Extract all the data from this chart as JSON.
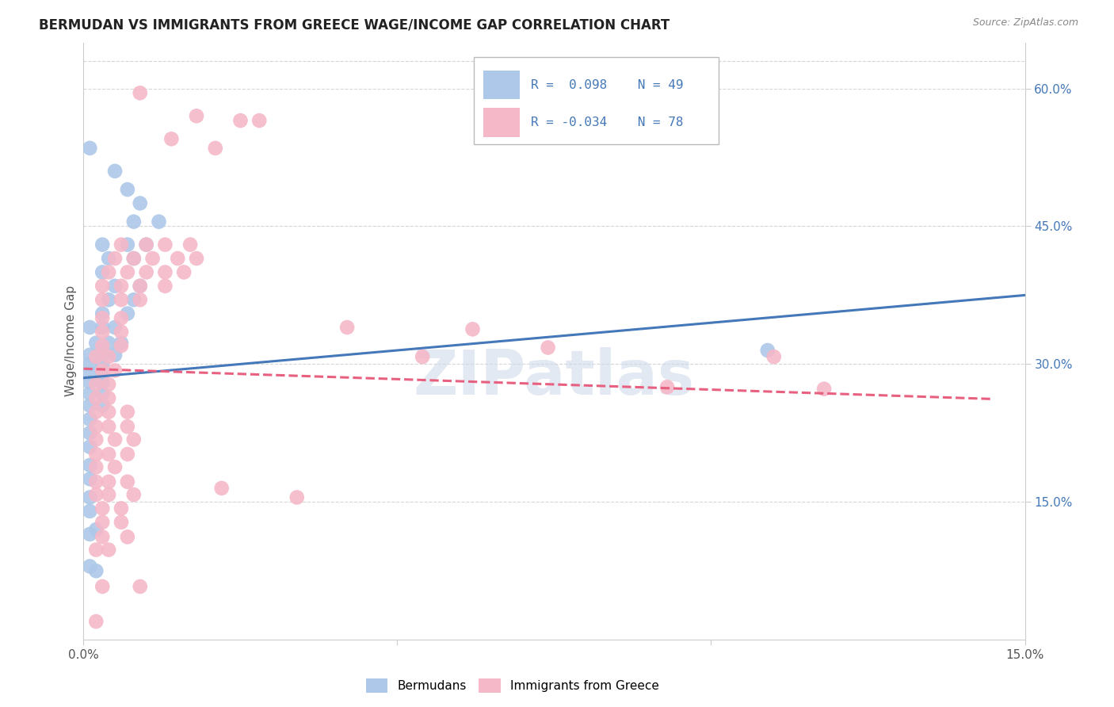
{
  "title": "BERMUDAN VS IMMIGRANTS FROM GREECE WAGE/INCOME GAP CORRELATION CHART",
  "source": "Source: ZipAtlas.com",
  "ylabel": "Wage/Income Gap",
  "watermark": "ZIPatlas",
  "xlim": [
    0.0,
    0.15
  ],
  "ylim": [
    0.0,
    0.65
  ],
  "yticks_right": [
    0.15,
    0.3,
    0.45,
    0.6
  ],
  "ytick_labels_right": [
    "15.0%",
    "30.0%",
    "45.0%",
    "60.0%"
  ],
  "series1_color": "#adc8e8",
  "series2_color": "#f5b8c8",
  "line1_color": "#4478b8",
  "line2_color": "#e86080",
  "background_color": "#ffffff",
  "grid_color": "#cccccc",
  "blue_dots": [
    [
      0.001,
      0.535
    ],
    [
      0.005,
      0.51
    ],
    [
      0.007,
      0.49
    ],
    [
      0.009,
      0.475
    ],
    [
      0.008,
      0.455
    ],
    [
      0.012,
      0.455
    ],
    [
      0.003,
      0.43
    ],
    [
      0.007,
      0.43
    ],
    [
      0.01,
      0.43
    ],
    [
      0.004,
      0.415
    ],
    [
      0.008,
      0.415
    ],
    [
      0.003,
      0.4
    ],
    [
      0.005,
      0.385
    ],
    [
      0.009,
      0.385
    ],
    [
      0.004,
      0.37
    ],
    [
      0.008,
      0.37
    ],
    [
      0.003,
      0.355
    ],
    [
      0.007,
      0.355
    ],
    [
      0.001,
      0.34
    ],
    [
      0.003,
      0.34
    ],
    [
      0.005,
      0.34
    ],
    [
      0.002,
      0.323
    ],
    [
      0.004,
      0.323
    ],
    [
      0.006,
      0.323
    ],
    [
      0.001,
      0.31
    ],
    [
      0.003,
      0.31
    ],
    [
      0.005,
      0.31
    ],
    [
      0.001,
      0.3
    ],
    [
      0.003,
      0.3
    ],
    [
      0.001,
      0.29
    ],
    [
      0.003,
      0.29
    ],
    [
      0.001,
      0.28
    ],
    [
      0.003,
      0.28
    ],
    [
      0.001,
      0.268
    ],
    [
      0.003,
      0.268
    ],
    [
      0.001,
      0.255
    ],
    [
      0.003,
      0.255
    ],
    [
      0.001,
      0.24
    ],
    [
      0.001,
      0.225
    ],
    [
      0.001,
      0.21
    ],
    [
      0.001,
      0.19
    ],
    [
      0.001,
      0.175
    ],
    [
      0.001,
      0.155
    ],
    [
      0.001,
      0.14
    ],
    [
      0.002,
      0.12
    ],
    [
      0.001,
      0.115
    ],
    [
      0.001,
      0.08
    ],
    [
      0.002,
      0.075
    ],
    [
      0.109,
      0.315
    ]
  ],
  "pink_dots": [
    [
      0.009,
      0.595
    ],
    [
      0.018,
      0.57
    ],
    [
      0.025,
      0.565
    ],
    [
      0.028,
      0.565
    ],
    [
      0.014,
      0.545
    ],
    [
      0.021,
      0.535
    ],
    [
      0.006,
      0.43
    ],
    [
      0.01,
      0.43
    ],
    [
      0.013,
      0.43
    ],
    [
      0.017,
      0.43
    ],
    [
      0.005,
      0.415
    ],
    [
      0.008,
      0.415
    ],
    [
      0.011,
      0.415
    ],
    [
      0.015,
      0.415
    ],
    [
      0.018,
      0.415
    ],
    [
      0.004,
      0.4
    ],
    [
      0.007,
      0.4
    ],
    [
      0.01,
      0.4
    ],
    [
      0.013,
      0.4
    ],
    [
      0.016,
      0.4
    ],
    [
      0.003,
      0.385
    ],
    [
      0.006,
      0.385
    ],
    [
      0.009,
      0.385
    ],
    [
      0.013,
      0.385
    ],
    [
      0.003,
      0.37
    ],
    [
      0.006,
      0.37
    ],
    [
      0.009,
      0.37
    ],
    [
      0.003,
      0.35
    ],
    [
      0.006,
      0.35
    ],
    [
      0.003,
      0.335
    ],
    [
      0.006,
      0.335
    ],
    [
      0.003,
      0.32
    ],
    [
      0.006,
      0.32
    ],
    [
      0.002,
      0.308
    ],
    [
      0.004,
      0.308
    ],
    [
      0.003,
      0.293
    ],
    [
      0.005,
      0.293
    ],
    [
      0.002,
      0.278
    ],
    [
      0.004,
      0.278
    ],
    [
      0.002,
      0.263
    ],
    [
      0.004,
      0.263
    ],
    [
      0.002,
      0.248
    ],
    [
      0.004,
      0.248
    ],
    [
      0.007,
      0.248
    ],
    [
      0.002,
      0.232
    ],
    [
      0.004,
      0.232
    ],
    [
      0.007,
      0.232
    ],
    [
      0.002,
      0.218
    ],
    [
      0.005,
      0.218
    ],
    [
      0.008,
      0.218
    ],
    [
      0.002,
      0.202
    ],
    [
      0.004,
      0.202
    ],
    [
      0.007,
      0.202
    ],
    [
      0.002,
      0.188
    ],
    [
      0.005,
      0.188
    ],
    [
      0.002,
      0.172
    ],
    [
      0.004,
      0.172
    ],
    [
      0.007,
      0.172
    ],
    [
      0.002,
      0.158
    ],
    [
      0.004,
      0.158
    ],
    [
      0.008,
      0.158
    ],
    [
      0.003,
      0.143
    ],
    [
      0.006,
      0.143
    ],
    [
      0.003,
      0.128
    ],
    [
      0.006,
      0.128
    ],
    [
      0.003,
      0.112
    ],
    [
      0.007,
      0.112
    ],
    [
      0.002,
      0.098
    ],
    [
      0.004,
      0.098
    ],
    [
      0.003,
      0.058
    ],
    [
      0.009,
      0.058
    ],
    [
      0.002,
      0.02
    ],
    [
      0.022,
      0.165
    ],
    [
      0.034,
      0.155
    ],
    [
      0.042,
      0.34
    ],
    [
      0.054,
      0.308
    ],
    [
      0.062,
      0.338
    ],
    [
      0.074,
      0.318
    ],
    [
      0.093,
      0.275
    ],
    [
      0.11,
      0.308
    ],
    [
      0.118,
      0.273
    ]
  ],
  "line1_x": [
    0.0,
    0.15
  ],
  "line1_y": [
    0.285,
    0.375
  ],
  "line2_x": [
    0.0,
    0.145
  ],
  "line2_y": [
    0.295,
    0.262
  ]
}
